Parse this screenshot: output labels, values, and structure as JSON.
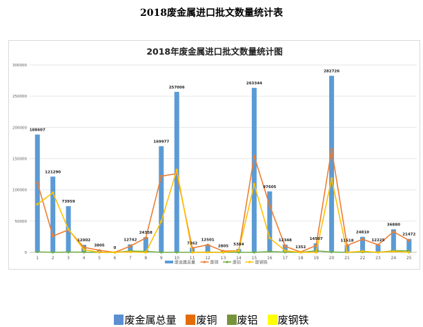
{
  "page_title": "2018废金属进口批文数量统计表",
  "legend_bottom": [
    {
      "label": "废金属总量",
      "color": "#5b8fd1"
    },
    {
      "label": "废铜",
      "color": "#e36c09"
    },
    {
      "label": "废铝",
      "color": "#76923c"
    },
    {
      "label": "废钢铁",
      "color": "#ffff00"
    }
  ],
  "chart_data": {
    "type": "bar+line",
    "title": "2018年废金属进口批文数量统计图",
    "categories": [
      "1",
      "2",
      "3",
      "4",
      "5",
      "6",
      "7",
      "8",
      "9",
      "10",
      "11",
      "12",
      "13",
      "14",
      "15",
      "16",
      "17",
      "18",
      "19",
      "20",
      "21",
      "22",
      "23",
      "24",
      "25"
    ],
    "ylim": [
      0,
      300000
    ],
    "yticks": [
      0,
      50000,
      100000,
      150000,
      200000,
      250000,
      300000
    ],
    "grid": true,
    "legend_position": "bottom",
    "series": [
      {
        "name": "废金属总量",
        "type": "bar",
        "color": "#5b9bd5",
        "data_labels": true,
        "values": [
          188607,
          121290,
          73959,
          12002,
          3805,
          0,
          12742,
          24358,
          169977,
          257006,
          7362,
          12501,
          2805,
          5384,
          263344,
          97605,
          12348,
          1352,
          14507,
          282726,
          11518,
          24810,
          12225,
          36880,
          21472
        ]
      },
      {
        "name": "废铜",
        "type": "line",
        "color": "#ed7d31",
        "values": [
          111500,
          26000,
          36000,
          8000,
          3300,
          0,
          10000,
          23000,
          122000,
          126000,
          7000,
          12000,
          2000,
          2600,
          154000,
          75000,
          9600,
          500,
          11000,
          165000,
          11000,
          21000,
          12000,
          33000,
          19000
        ]
      },
      {
        "name": "废铝",
        "type": "line",
        "color": "#70ad47",
        "values": [
          700,
          0,
          300,
          300,
          0,
          0,
          2000,
          1500,
          0,
          0,
          0,
          300,
          0,
          0,
          0,
          1200,
          300,
          0,
          2500,
          500,
          0,
          500,
          0,
          2500,
          2500
        ]
      },
      {
        "name": "废钢铁",
        "type": "line",
        "color": "#ffc000",
        "values": [
          77000,
          95500,
          37000,
          4400,
          0,
          0,
          700,
          0,
          49600,
          132000,
          0,
          0,
          0,
          2600,
          109000,
          23000,
          2600,
          0,
          0,
          118000,
          0,
          1800,
          0,
          1500,
          0
        ]
      }
    ]
  }
}
